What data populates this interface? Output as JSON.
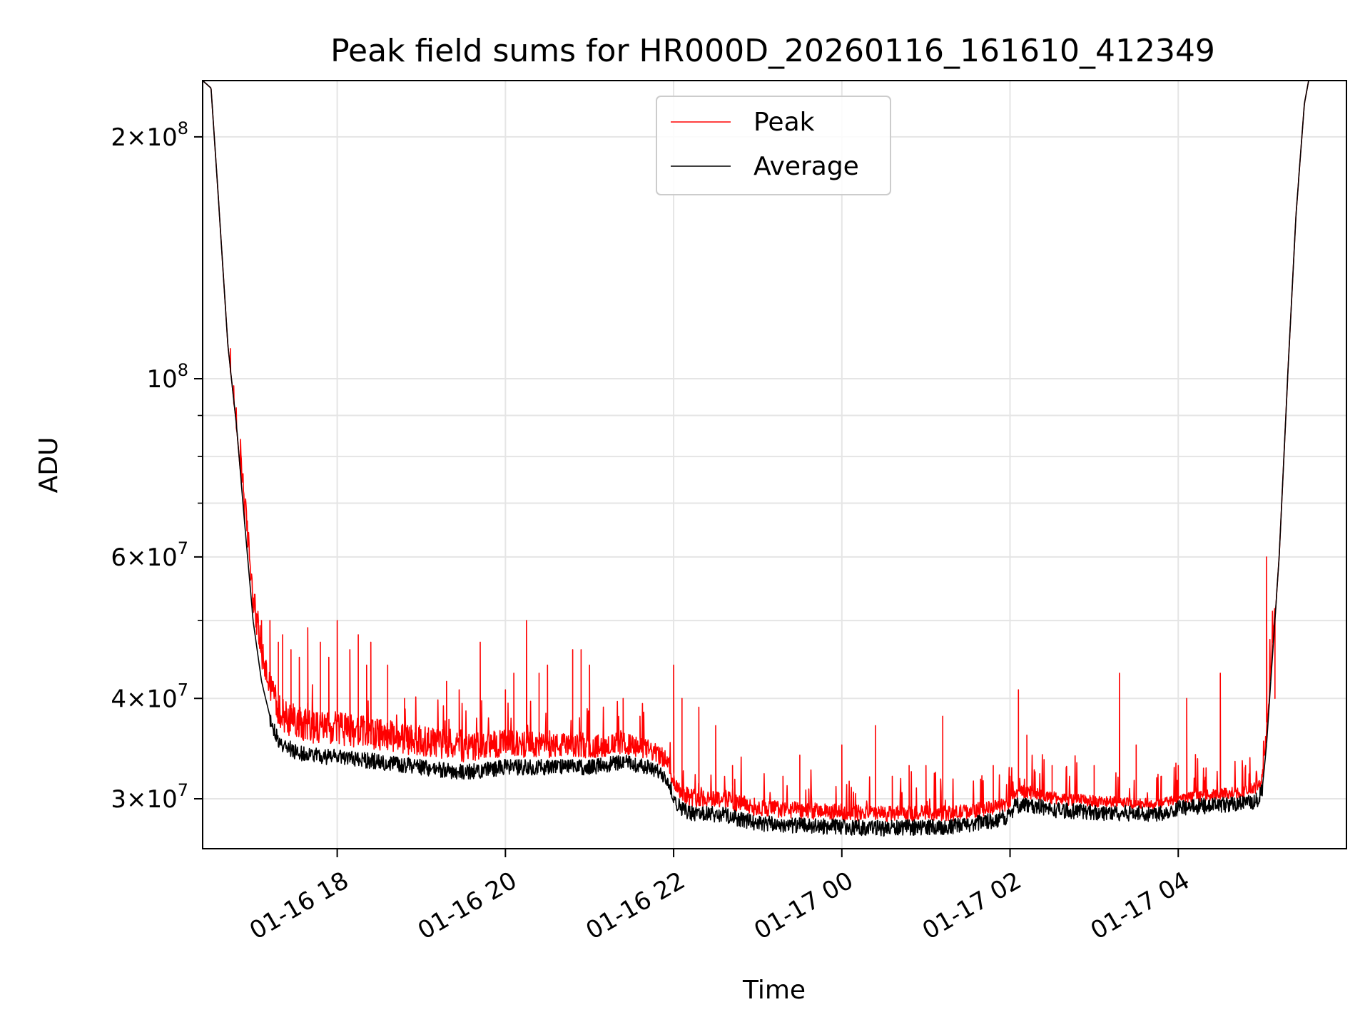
{
  "chart_data": {
    "type": "line",
    "title": "Peak field sums for HR000D_20260116_161610_412349",
    "xlabel": "Time",
    "ylabel": "ADU",
    "yscale": "log",
    "grid": true,
    "legend_position": "upper-center",
    "x_unit": "hours since 01-16 00:00",
    "xlim": [
      16.4,
      30.0
    ],
    "ylim": [
      26000000,
      235000000
    ],
    "x_ticks": [
      {
        "value": 18,
        "label": "01-16 18"
      },
      {
        "value": 20,
        "label": "01-16 20"
      },
      {
        "value": 22,
        "label": "01-16 22"
      },
      {
        "value": 24,
        "label": "01-17 00"
      },
      {
        "value": 26,
        "label": "01-17 02"
      },
      {
        "value": 28,
        "label": "01-17 04"
      }
    ],
    "y_major_ticks": [
      {
        "value": 30000000,
        "base": "3",
        "exp": "7"
      },
      {
        "value": 40000000,
        "base": "4",
        "exp": "7"
      },
      {
        "value": 60000000,
        "base": "6",
        "exp": "7"
      },
      {
        "value": 100000000,
        "base": "",
        "exp": "8"
      },
      {
        "value": 200000000,
        "base": "2",
        "exp": "8"
      }
    ],
    "y_minor_ticks": [
      50000000,
      70000000,
      80000000,
      90000000
    ],
    "series": [
      {
        "name": "Peak",
        "color": "#ff0000",
        "baseline_offset_pct": [
          [
            16.9,
            6
          ],
          [
            17.1,
            8
          ],
          [
            20.0,
            6
          ],
          [
            22.0,
            4
          ],
          [
            26.0,
            3
          ],
          [
            28.0,
            2
          ],
          [
            29.1,
            3
          ]
        ],
        "spikes": [
          [
            16.73,
            109000000
          ],
          [
            16.77,
            98000000
          ],
          [
            16.8,
            92000000
          ],
          [
            16.86,
            74000000
          ],
          [
            16.9,
            66000000
          ],
          [
            17.0,
            52000000
          ],
          [
            17.1,
            50000000
          ],
          [
            17.2,
            50000000
          ],
          [
            17.3,
            47000000
          ],
          [
            17.35,
            48000000
          ],
          [
            17.45,
            46000000
          ],
          [
            17.55,
            45000000
          ],
          [
            17.65,
            49000000
          ],
          [
            17.8,
            47000000
          ],
          [
            17.9,
            45000000
          ],
          [
            18.0,
            50000000
          ],
          [
            18.15,
            46000000
          ],
          [
            18.25,
            48000000
          ],
          [
            18.35,
            44000000
          ],
          [
            18.4,
            47000000
          ],
          [
            18.6,
            44000000
          ],
          [
            18.8,
            40000000
          ],
          [
            19.3,
            42000000
          ],
          [
            19.45,
            41000000
          ],
          [
            19.7,
            47000000
          ],
          [
            20.0,
            41000000
          ],
          [
            20.1,
            43000000
          ],
          [
            20.25,
            50000000
          ],
          [
            20.4,
            43000000
          ],
          [
            20.5,
            44000000
          ],
          [
            20.8,
            46000000
          ],
          [
            20.9,
            46000000
          ],
          [
            21.0,
            44000000
          ],
          [
            21.4,
            40000000
          ],
          [
            21.6,
            38000000
          ],
          [
            22.0,
            44000000
          ],
          [
            22.1,
            40000000
          ],
          [
            22.3,
            39000000
          ],
          [
            22.5,
            37000000
          ],
          [
            22.7,
            33000000
          ],
          [
            23.3,
            32000000
          ],
          [
            23.5,
            34000000
          ],
          [
            24.0,
            35000000
          ],
          [
            24.4,
            37000000
          ],
          [
            24.6,
            32000000
          ],
          [
            24.8,
            33000000
          ],
          [
            25.0,
            33000000
          ],
          [
            25.2,
            38000000
          ],
          [
            25.8,
            33000000
          ],
          [
            26.0,
            32000000
          ],
          [
            26.1,
            41000000
          ],
          [
            26.2,
            36000000
          ],
          [
            26.5,
            33000000
          ],
          [
            27.0,
            33000000
          ],
          [
            27.3,
            43000000
          ],
          [
            27.5,
            35000000
          ],
          [
            27.8,
            32000000
          ],
          [
            28.0,
            33000000
          ],
          [
            28.1,
            40000000
          ],
          [
            28.5,
            43000000
          ],
          [
            28.8,
            33000000
          ],
          [
            29.05,
            60000000
          ],
          [
            29.15,
            40000000
          ]
        ]
      },
      {
        "name": "Average",
        "color": "#000000",
        "baseline": [
          [
            16.4,
            235000000
          ],
          [
            16.5,
            230000000
          ],
          [
            16.6,
            160000000
          ],
          [
            16.7,
            110000000
          ],
          [
            16.8,
            88000000
          ],
          [
            16.9,
            66000000
          ],
          [
            17.0,
            50000000
          ],
          [
            17.1,
            42000000
          ],
          [
            17.2,
            38000000
          ],
          [
            17.3,
            35500000
          ],
          [
            17.5,
            34500000
          ],
          [
            17.8,
            34000000
          ],
          [
            18.0,
            34000000
          ],
          [
            18.5,
            33500000
          ],
          [
            19.0,
            33000000
          ],
          [
            19.5,
            32500000
          ],
          [
            20.0,
            33000000
          ],
          [
            20.5,
            33000000
          ],
          [
            21.0,
            33000000
          ],
          [
            21.4,
            33500000
          ],
          [
            21.7,
            33000000
          ],
          [
            21.9,
            32200000
          ],
          [
            22.05,
            29600000
          ],
          [
            22.2,
            28900000
          ],
          [
            22.6,
            28800000
          ],
          [
            22.8,
            28400000
          ],
          [
            23.0,
            28100000
          ],
          [
            23.5,
            27900000
          ],
          [
            24.0,
            27800000
          ],
          [
            24.5,
            27700000
          ],
          [
            25.0,
            27800000
          ],
          [
            25.3,
            27800000
          ],
          [
            25.5,
            28000000
          ],
          [
            25.8,
            28300000
          ],
          [
            26.0,
            28700000
          ],
          [
            26.05,
            29500000
          ],
          [
            26.2,
            29700000
          ],
          [
            26.5,
            29200000
          ],
          [
            27.0,
            29000000
          ],
          [
            27.5,
            28900000
          ],
          [
            27.8,
            28900000
          ],
          [
            28.0,
            29400000
          ],
          [
            28.5,
            29600000
          ],
          [
            28.8,
            29800000
          ],
          [
            28.95,
            30000000
          ],
          [
            29.0,
            31000000
          ],
          [
            29.05,
            35000000
          ],
          [
            29.1,
            42000000
          ],
          [
            29.2,
            60000000
          ],
          [
            29.3,
            100000000
          ],
          [
            29.4,
            160000000
          ],
          [
            29.5,
            220000000
          ],
          [
            29.55,
            235000000
          ]
        ]
      }
    ]
  }
}
